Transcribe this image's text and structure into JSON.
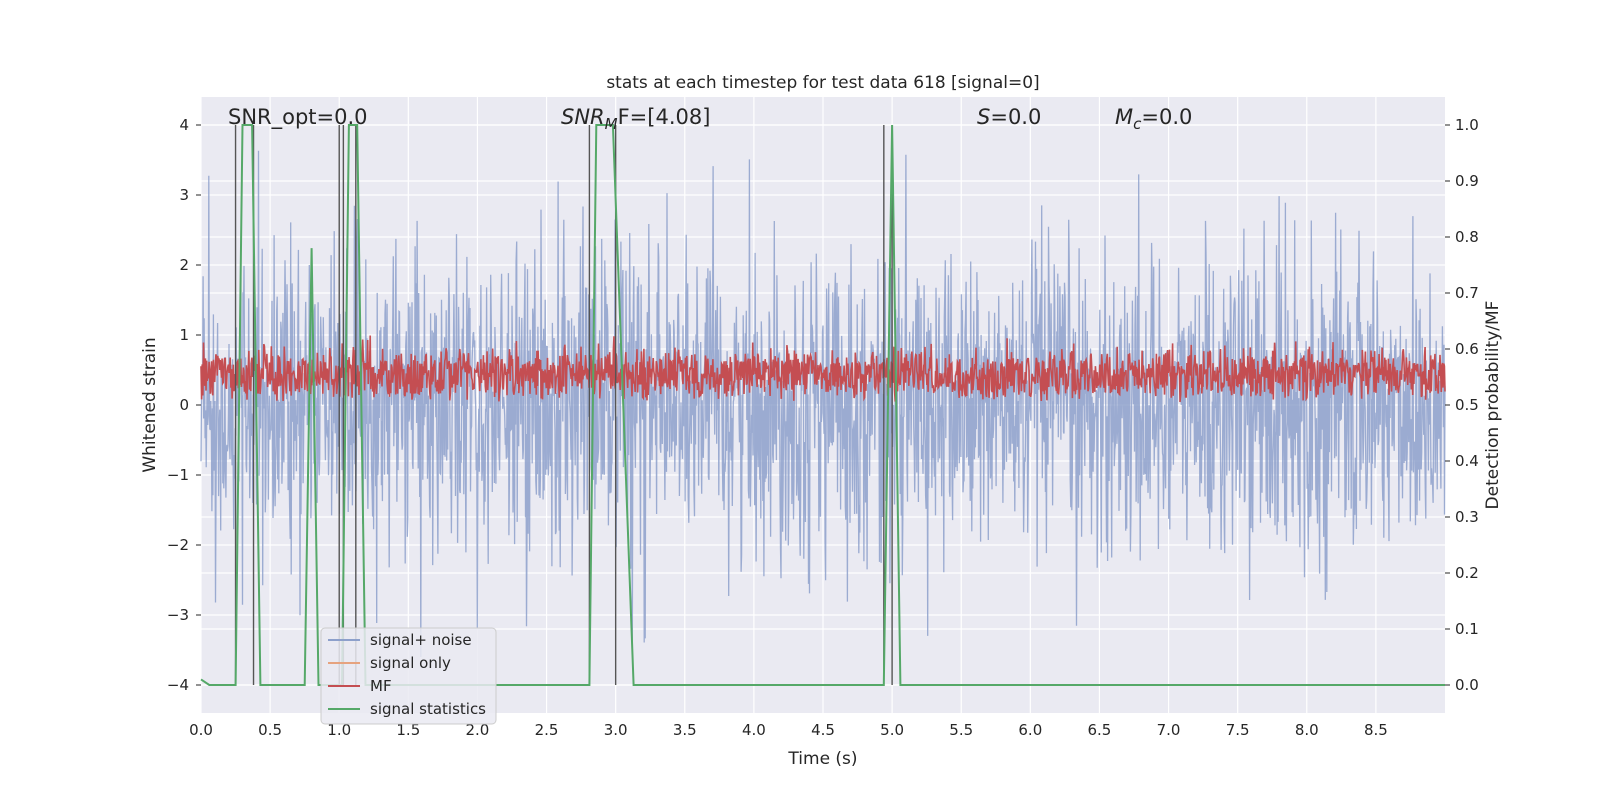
{
  "chart_data": {
    "type": "line",
    "title": "stats at each timestep for test data 618 [signal=0]",
    "xlabel": "Time (s)",
    "ylabel_left": "Whitened strain",
    "ylabel_right": "Detection probability/MF",
    "xlim": [
      0.0,
      9.0
    ],
    "ylim_left": [
      -4.4,
      4.4
    ],
    "ylim_right": [
      -0.05,
      1.05
    ],
    "xticks": [
      "0.0",
      "0.5",
      "1.0",
      "1.5",
      "2.0",
      "2.5",
      "3.0",
      "3.5",
      "4.0",
      "4.5",
      "5.0",
      "5.5",
      "6.0",
      "6.5",
      "7.0",
      "7.5",
      "8.0",
      "8.5"
    ],
    "yticks_left": [
      "−4",
      "−3",
      "−2",
      "−1",
      "0",
      "1",
      "2",
      "3",
      "4"
    ],
    "yticks_right": [
      "0.0",
      "0.1",
      "0.2",
      "0.3",
      "0.4",
      "0.5",
      "0.6",
      "0.7",
      "0.8",
      "0.9",
      "1.0"
    ],
    "grid": true,
    "legend_position": "lower-left",
    "annotations": {
      "snr_opt": "SNR_opt=0.0",
      "snr_mf_main": "SNR",
      "snr_mf_sub": "M",
      "snr_mf_rest": "F=[4.08]",
      "s_main": "S",
      "s_rest": "=0.0",
      "mc_main": "M",
      "mc_sub": "c",
      "mc_rest": "=0.0"
    },
    "series": [
      {
        "name": "signal+ noise",
        "color": "#8da0cb",
        "description_range": [
          -3.6,
          4.0
        ]
      },
      {
        "name": "signal only",
        "color": "#e6a37f",
        "values": []
      },
      {
        "name": "MF",
        "color": "#c44e52",
        "description_range": [
          0.03,
          1.0
        ]
      },
      {
        "name": "signal statistics",
        "color": "#55a868",
        "x": [
          0.0,
          0.06,
          0.25,
          0.3,
          0.37,
          0.43,
          0.75,
          0.8,
          0.85,
          1.02,
          1.07,
          1.13,
          1.19,
          2.81,
          2.86,
          2.98,
          3.13,
          4.94,
          5.0,
          5.06,
          9.0
        ],
        "y": [
          0.01,
          0.0,
          0.0,
          1.0,
          1.0,
          0.0,
          0.0,
          0.78,
          0.0,
          0.0,
          1.0,
          1.0,
          0.0,
          0.0,
          1.0,
          1.0,
          0.0,
          0.0,
          1.0,
          0.0,
          0.0
        ]
      }
    ],
    "vertical_lines_x": [
      0.25,
      0.38,
      1.0,
      1.03,
      1.12,
      2.81,
      3.0,
      4.94,
      5.0
    ]
  }
}
